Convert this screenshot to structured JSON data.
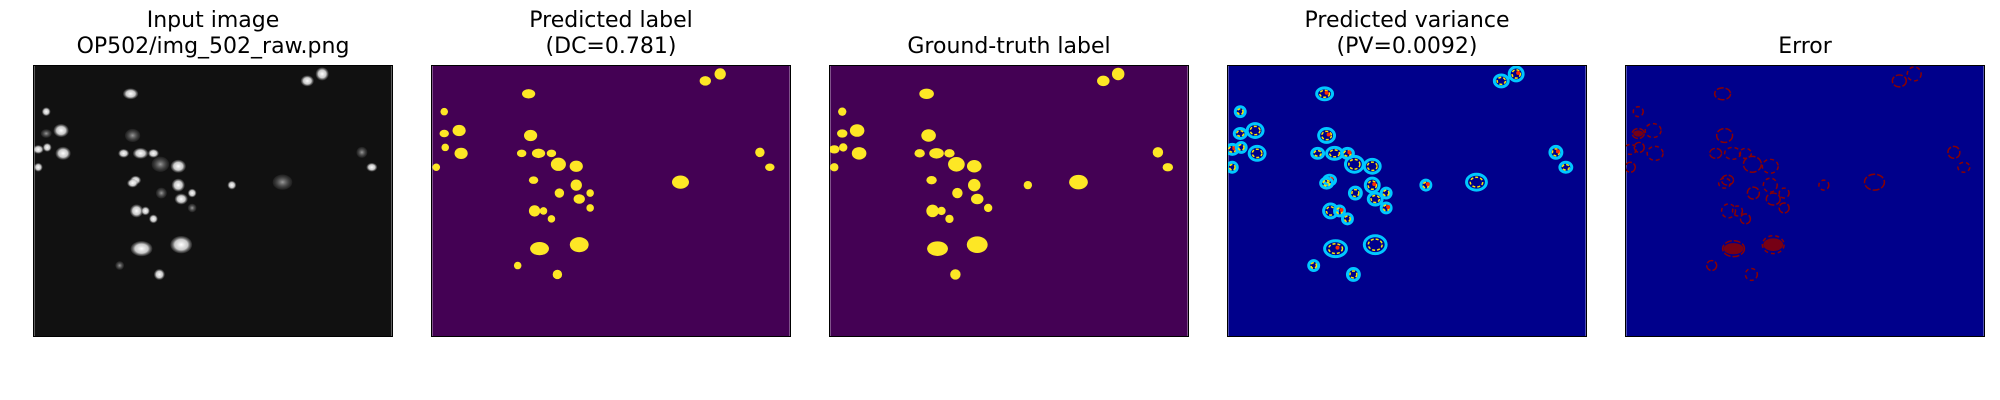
{
  "panels": [
    {
      "title_lines": [
        "Input image",
        "OP502/img_502_raw.png"
      ],
      "kind": "raw"
    },
    {
      "title_lines": [
        "Predicted label",
        "(DC=0.781)"
      ],
      "kind": "predicted_label"
    },
    {
      "title_lines": [
        "Ground-truth label"
      ],
      "kind": "ground_truth"
    },
    {
      "title_lines": [
        "Predicted variance",
        "(PV=0.0092)"
      ],
      "kind": "variance"
    },
    {
      "title_lines": [
        "Error"
      ],
      "kind": "error"
    }
  ],
  "colors": {
    "raw_background": "#111111",
    "raw_cell": "#dcdcdc",
    "label_background": "#440154",
    "label_cell": "#fde725",
    "variance_background": "#00008b",
    "error_background": "#00008b",
    "error_mark": "#8b0000"
  }
}
